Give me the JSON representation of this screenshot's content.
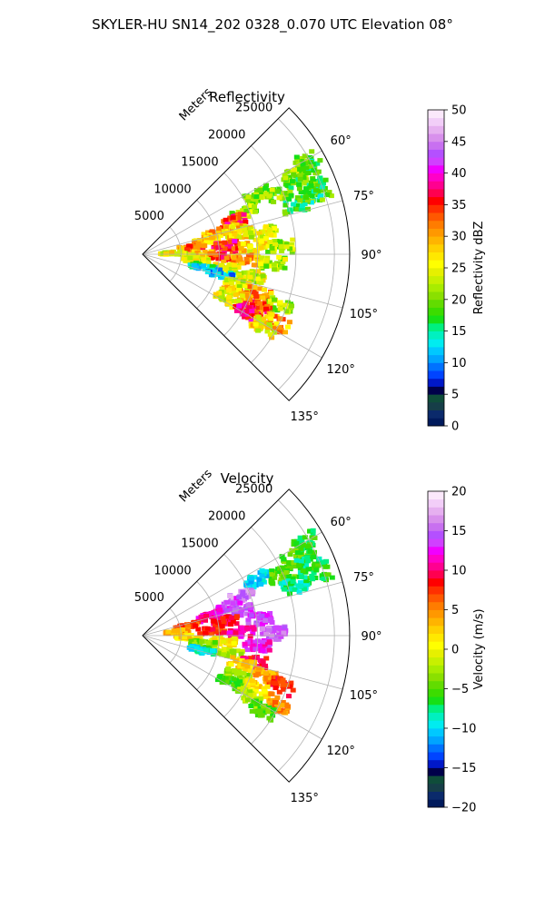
{
  "figure": {
    "suptitle": "SKYLER-HU  SN14_202  0328_0.070 UTC Elevation 08°"
  },
  "chart_data": [
    {
      "type": "heatmap",
      "projection": "polar-sector",
      "title": "Reflectivity",
      "radial_label": "Meters",
      "azimuth_range_deg": [
        45,
        135
      ],
      "range_max_m": 27000,
      "grid": true,
      "radial_ticks": [
        5000,
        10000,
        15000,
        20000,
        25000
      ],
      "radial_tick_labels": [
        "5000",
        "10000",
        "15000",
        "20000",
        "25000"
      ],
      "angle_ticks": [
        60,
        75,
        90,
        105,
        120,
        135
      ],
      "angle_tick_labels": [
        "60°",
        "75°",
        "90°",
        "105°",
        "120°",
        "135°"
      ],
      "colorbar": {
        "label": "Reflectivity dBZ",
        "min": 0,
        "max": 50,
        "ticks": [
          0,
          5,
          10,
          15,
          20,
          25,
          30,
          35,
          40,
          45,
          50
        ],
        "tick_labels": [
          "0",
          "5",
          "10",
          "15",
          "20",
          "25",
          "30",
          "35",
          "40",
          "45",
          "50"
        ],
        "colors": [
          "#001a5c",
          "#0b2a6b",
          "#163e48",
          "#0f4d3a",
          "#00004a",
          "#0018c8",
          "#0044ff",
          "#0072ff",
          "#00a4ff",
          "#00c8ff",
          "#00ecf0",
          "#00f0c0",
          "#00f080",
          "#16e016",
          "#3cdc00",
          "#62dc00",
          "#8ae000",
          "#a8ec00",
          "#c8f000",
          "#e6f000",
          "#ffff00",
          "#ffe800",
          "#ffd000",
          "#ffb400",
          "#ff9800",
          "#ff7c00",
          "#ff5800",
          "#ff3000",
          "#ff0000",
          "#ff0050",
          "#ff0090",
          "#ff00c8",
          "#f000ff",
          "#d040ff",
          "#b450ff",
          "#c870f0",
          "#d890ec",
          "#e6b0f0",
          "#f2cef8",
          "#fbe8fb"
        ]
      },
      "echo_cells": [
        {
          "az": 60.5,
          "r_m": 24500,
          "dbz": 19
        },
        {
          "az": 63,
          "r_m": 22500,
          "dbz": 20
        },
        {
          "az": 66,
          "r_m": 23800,
          "dbz": 18
        },
        {
          "az": 66,
          "r_m": 19800,
          "dbz": 20
        },
        {
          "az": 70.5,
          "r_m": 24200,
          "dbz": 18
        },
        {
          "az": 72,
          "r_m": 21000,
          "dbz": 17
        },
        {
          "az": 63,
          "r_m": 17000,
          "dbz": 20
        },
        {
          "az": 68,
          "r_m": 14500,
          "dbz": 22
        },
        {
          "az": 70,
          "r_m": 12500,
          "dbz": 35
        },
        {
          "az": 74,
          "r_m": 10000,
          "dbz": 30
        },
        {
          "az": 75,
          "r_m": 12500,
          "dbz": 28
        },
        {
          "az": 78,
          "r_m": 8500,
          "dbz": 28
        },
        {
          "az": 78,
          "r_m": 13000,
          "dbz": 26
        },
        {
          "az": 80,
          "r_m": 16000,
          "dbz": 24
        },
        {
          "az": 82,
          "r_m": 6500,
          "dbz": 32
        },
        {
          "az": 84,
          "r_m": 11000,
          "dbz": 36
        },
        {
          "az": 86,
          "r_m": 14500,
          "dbz": 27
        },
        {
          "az": 87,
          "r_m": 18000,
          "dbz": 22
        },
        {
          "az": 88,
          "r_m": 4000,
          "dbz": 25
        },
        {
          "az": 90,
          "r_m": 8000,
          "dbz": 27
        },
        {
          "az": 92,
          "r_m": 10500,
          "dbz": 34
        },
        {
          "az": 93,
          "r_m": 13500,
          "dbz": 30
        },
        {
          "az": 94,
          "r_m": 17000,
          "dbz": 22
        },
        {
          "az": 96,
          "r_m": 7000,
          "dbz": 24
        },
        {
          "az": 99,
          "r_m": 11000,
          "dbz": 26
        },
        {
          "az": 101,
          "r_m": 14500,
          "dbz": 24
        },
        {
          "az": 102,
          "r_m": 8000,
          "dbz": 15
        },
        {
          "az": 104,
          "r_m": 10500,
          "dbz": 12
        },
        {
          "az": 107,
          "r_m": 13000,
          "dbz": 25
        },
        {
          "az": 109,
          "r_m": 16000,
          "dbz": 31
        },
        {
          "az": 111,
          "r_m": 19000,
          "dbz": 22
        },
        {
          "az": 113,
          "r_m": 13000,
          "dbz": 27
        },
        {
          "az": 115,
          "r_m": 16500,
          "dbz": 34
        },
        {
          "az": 117,
          "r_m": 19500,
          "dbz": 30
        },
        {
          "az": 118,
          "r_m": 12500,
          "dbz": 24
        },
        {
          "az": 119,
          "r_m": 15500,
          "dbz": 37
        },
        {
          "az": 121,
          "r_m": 18500,
          "dbz": 26
        }
      ]
    },
    {
      "type": "heatmap",
      "projection": "polar-sector",
      "title": "Velocity",
      "radial_label": "Meters",
      "azimuth_range_deg": [
        45,
        135
      ],
      "range_max_m": 27000,
      "grid": true,
      "radial_ticks": [
        5000,
        10000,
        15000,
        20000,
        25000
      ],
      "radial_tick_labels": [
        "5000",
        "10000",
        "15000",
        "20000",
        "25000"
      ],
      "angle_ticks": [
        60,
        75,
        90,
        105,
        120,
        135
      ],
      "angle_tick_labels": [
        "60°",
        "75°",
        "90°",
        "105°",
        "120°",
        "135°"
      ],
      "colorbar": {
        "label": "Velocity (m/s)",
        "min": -20,
        "max": 20,
        "ticks": [
          -20,
          -15,
          -10,
          -5,
          0,
          5,
          10,
          15,
          20
        ],
        "tick_labels": [
          "−20",
          "−15",
          "−10",
          "−5",
          "0",
          "5",
          "10",
          "15",
          "20"
        ],
        "colors": [
          "#001a5c",
          "#0b2a6b",
          "#163e48",
          "#0f4d3a",
          "#00004a",
          "#0018c8",
          "#0044ff",
          "#0072ff",
          "#00a4ff",
          "#00c8ff",
          "#00ecf0",
          "#00f0c0",
          "#00f080",
          "#16e016",
          "#3cdc00",
          "#62dc00",
          "#8ae000",
          "#a8ec00",
          "#c8f000",
          "#e6f000",
          "#ffff00",
          "#ffe800",
          "#ffd000",
          "#ffb400",
          "#ff9800",
          "#ff7c00",
          "#ff5800",
          "#ff3000",
          "#ff0000",
          "#ff0050",
          "#ff0090",
          "#ff00c8",
          "#f000ff",
          "#d040ff",
          "#b450ff",
          "#c870f0",
          "#d890ec",
          "#e6b0f0",
          "#f2cef8",
          "#fbe8fb"
        ]
      },
      "echo_cells": [
        {
          "az": 60.5,
          "r_m": 24500,
          "v": -6
        },
        {
          "az": 63,
          "r_m": 22500,
          "v": -5
        },
        {
          "az": 66,
          "r_m": 23800,
          "v": -7
        },
        {
          "az": 66,
          "r_m": 19800,
          "v": -5
        },
        {
          "az": 70.5,
          "r_m": 24200,
          "v": -6
        },
        {
          "az": 72,
          "r_m": 21000,
          "v": -8
        },
        {
          "az": 64,
          "r_m": 16500,
          "v": -10
        },
        {
          "az": 68,
          "r_m": 14000,
          "v": 16
        },
        {
          "az": 71,
          "r_m": 12000,
          "v": 14
        },
        {
          "az": 74,
          "r_m": 9000,
          "v": 11
        },
        {
          "az": 76,
          "r_m": 13000,
          "v": 14
        },
        {
          "az": 78,
          "r_m": 6000,
          "v": 7
        },
        {
          "az": 80,
          "r_m": 11000,
          "v": 9
        },
        {
          "az": 82,
          "r_m": 15500,
          "v": 14
        },
        {
          "az": 84,
          "r_m": 4500,
          "v": 4
        },
        {
          "az": 86,
          "r_m": 9000,
          "v": 8
        },
        {
          "az": 88,
          "r_m": 13000,
          "v": 11
        },
        {
          "az": 89,
          "r_m": 17000,
          "v": 15
        },
        {
          "az": 92,
          "r_m": 6000,
          "v": 2
        },
        {
          "az": 94,
          "r_m": 10500,
          "v": 1
        },
        {
          "az": 95,
          "r_m": 15000,
          "v": 12
        },
        {
          "az": 98,
          "r_m": 8000,
          "v": -4
        },
        {
          "az": 101,
          "r_m": 11500,
          "v": -2
        },
        {
          "az": 103,
          "r_m": 15000,
          "v": 9
        },
        {
          "az": 104,
          "r_m": 8000,
          "v": -9
        },
        {
          "az": 106,
          "r_m": 13500,
          "v": 2
        },
        {
          "az": 108,
          "r_m": 17000,
          "v": 4
        },
        {
          "az": 110,
          "r_m": 19500,
          "v": 8
        },
        {
          "az": 113,
          "r_m": 13500,
          "v": -3
        },
        {
          "az": 115,
          "r_m": 16500,
          "v": 2
        },
        {
          "az": 117,
          "r_m": 20000,
          "v": 5
        },
        {
          "az": 118,
          "r_m": 13000,
          "v": -6
        },
        {
          "az": 120,
          "r_m": 16000,
          "v": -2
        },
        {
          "az": 122,
          "r_m": 18500,
          "v": -5
        }
      ]
    }
  ]
}
